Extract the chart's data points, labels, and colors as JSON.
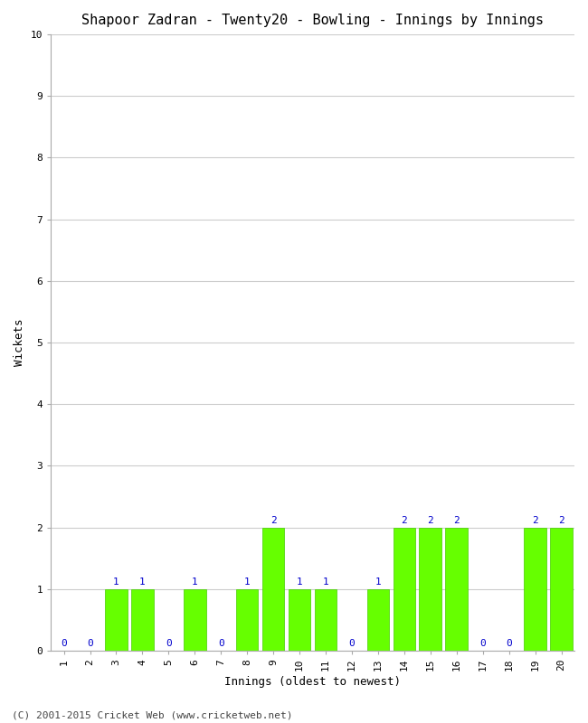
{
  "title": "Shapoor Zadran - Twenty20 - Bowling - Innings by Innings",
  "xlabel": "Innings (oldest to newest)",
  "ylabel": "Wickets",
  "footer": "(C) 2001-2015 Cricket Web (www.cricketweb.net)",
  "innings": [
    1,
    2,
    3,
    4,
    5,
    6,
    7,
    8,
    9,
    10,
    11,
    12,
    13,
    14,
    15,
    16,
    17,
    18,
    19,
    20
  ],
  "wickets": [
    0,
    0,
    1,
    1,
    0,
    1,
    0,
    1,
    2,
    1,
    1,
    0,
    1,
    2,
    2,
    2,
    0,
    0,
    2,
    2
  ],
  "bar_color": "#66ff00",
  "bar_edge_color": "#44cc00",
  "label_color": "#0000cc",
  "ylim": [
    0,
    10
  ],
  "yticks": [
    0,
    1,
    2,
    3,
    4,
    5,
    6,
    7,
    8,
    9,
    10
  ],
  "background_color": "#ffffff",
  "plot_background_color": "#ffffff",
  "title_fontsize": 11,
  "axis_label_fontsize": 9,
  "tick_fontsize": 8,
  "label_fontsize": 8,
  "footer_fontsize": 8,
  "grid_color": "#cccccc",
  "font_family": "monospace"
}
